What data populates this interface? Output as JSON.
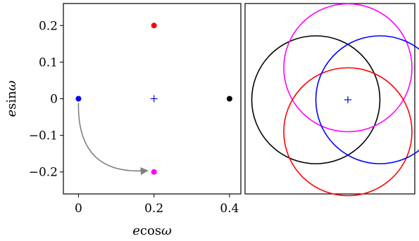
{
  "chart_data": [
    {
      "type": "scatter",
      "xlabel_parts": [
        "e",
        "cos",
        "ω"
      ],
      "ylabel_parts": [
        "e",
        "sin",
        "ω"
      ],
      "xlim": [
        -0.04,
        0.43
      ],
      "ylim": [
        -0.26,
        0.26
      ],
      "xticks": [
        0,
        0.2,
        0.4
      ],
      "xtick_labels": [
        "0",
        "0.2",
        "0.4"
      ],
      "yticks": [
        0.2,
        0.1,
        0,
        -0.1,
        -0.2
      ],
      "ytick_labels": [
        "0.2",
        "0.1",
        "0",
        "−0.1",
        "−0.2"
      ],
      "points": [
        {
          "x": 0.2,
          "y": 0.2,
          "color": "#ff0000"
        },
        {
          "x": 0.0,
          "y": 0.0,
          "color": "#0000ff"
        },
        {
          "x": 0.4,
          "y": 0.0,
          "color": "#000000"
        },
        {
          "x": 0.2,
          "y": -0.2,
          "color": "#ff00ff"
        }
      ],
      "center_marker": {
        "x": 0.2,
        "y": 0.0,
        "symbol": "+",
        "color": "#0000ff"
      },
      "arrow": {
        "from": [
          0.0,
          0.0
        ],
        "to": [
          0.2,
          -0.2
        ],
        "color": "#808080"
      }
    },
    {
      "type": "line",
      "description_free": true,
      "xlim": [
        -0.6,
        0.6
      ],
      "ylim": [
        -0.6,
        0.6
      ],
      "center_marker": {
        "x": 0.0,
        "y": 0.0,
        "symbol": "+",
        "color": "#0000ff"
      },
      "circles": [
        {
          "cx": -0.2,
          "cy": 0.0,
          "r": 0.4,
          "color": "#000000"
        },
        {
          "cx": 0.0,
          "cy": 0.2,
          "r": 0.4,
          "color": "#ff00ff"
        },
        {
          "cx": 0.0,
          "cy": -0.2,
          "r": 0.4,
          "color": "#ff0000"
        },
        {
          "cx": 0.2,
          "cy": 0.0,
          "r": 0.4,
          "color": "#0000ff"
        }
      ]
    }
  ]
}
